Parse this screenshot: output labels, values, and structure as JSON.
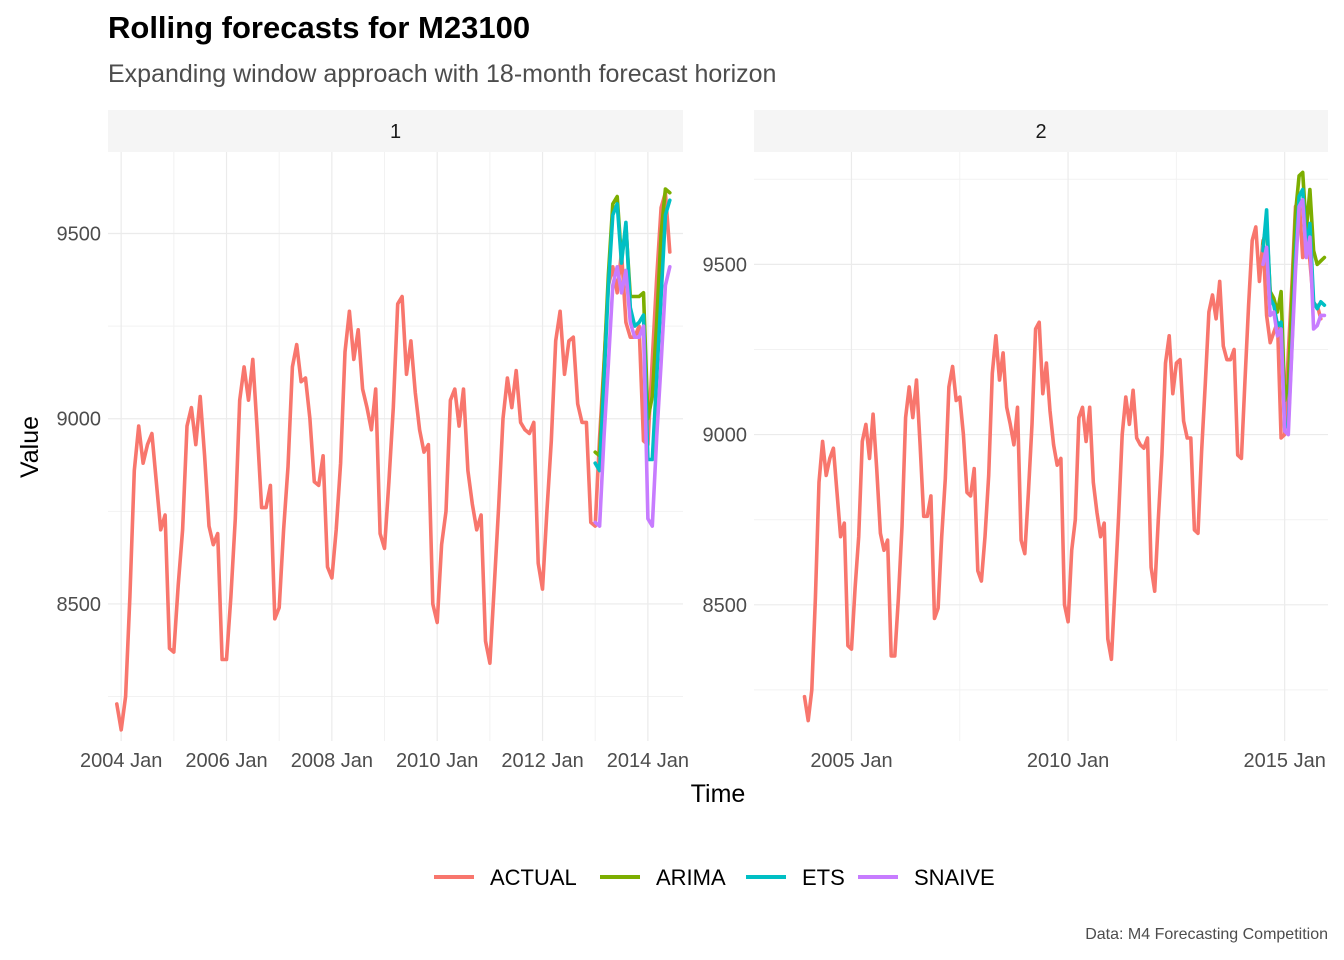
{
  "title": "Rolling forecasts for M23100",
  "subtitle": "Expanding window approach with 18-month forecast horizon",
  "caption": "Data: M4 Forecasting Competition",
  "colors": {
    "ACTUAL": "#F8766D",
    "ARIMA": "#7CAE00",
    "ETS": "#00BFC4",
    "SNAIVE": "#C77CFF"
  },
  "chart_data": {
    "type": "line",
    "xlabel": "Time",
    "ylabel": "Value",
    "legend_position": "bottom",
    "grid": true,
    "series_names": [
      "ACTUAL",
      "ARIMA",
      "ETS",
      "SNAIVE"
    ],
    "actual_series": {
      "name": "ACTUAL",
      "start": "2003 Dec",
      "values": [
        8230,
        8160,
        8250,
        8520,
        8860,
        8980,
        8880,
        8930,
        8960,
        8830,
        8700,
        8740,
        8380,
        8370,
        8550,
        8700,
        8980,
        9030,
        8930,
        9060,
        8900,
        8710,
        8660,
        8690,
        8350,
        8350,
        8520,
        8730,
        9050,
        9140,
        9050,
        9160,
        8970,
        8760,
        8760,
        8820,
        8460,
        8490,
        8700,
        8870,
        9140,
        9200,
        9100,
        9110,
        9000,
        8830,
        8820,
        8900,
        8600,
        8570,
        8700,
        8880,
        9180,
        9290,
        9160,
        9240,
        9080,
        9030,
        8970,
        9080,
        8690,
        8650,
        8830,
        9030,
        9310,
        9330,
        9120,
        9210,
        9070,
        8970,
        8910,
        8930,
        8500,
        8450,
        8660,
        8750,
        9050,
        9080,
        8980,
        9080,
        8860,
        8770,
        8700,
        8740,
        8400,
        8340,
        8550,
        8760,
        9000,
        9110,
        9030,
        9130,
        8990,
        8970,
        8960,
        8990,
        8610,
        8540,
        8750,
        8940,
        9210,
        9290,
        9120,
        9210,
        9220,
        9040,
        8990,
        8990,
        8720,
        8710,
        8950,
        9150,
        9360,
        9410,
        9340,
        9450,
        9260,
        9220,
        9220,
        9250,
        8940,
        8930,
        9160,
        9380,
        9570,
        9610,
        9450,
        9570,
        9350,
        9270,
        9300,
        9330,
        8990,
        9000,
        9240,
        9440,
        9670,
        9690,
        9520,
        9620,
        9510,
        9380,
        9380,
        9340
      ],
      "panel_ends": [
        "2014 Jun",
        "2016 Jan"
      ]
    },
    "panels": [
      {
        "label": "1",
        "x_ticks": [
          "2004 Jan",
          "2006 Jan",
          "2008 Jan",
          "2010 Jan",
          "2012 Jan",
          "2014 Jan"
        ],
        "y_ticks": [
          8500,
          9000,
          9500
        ],
        "ylim": [
          8130,
          9720
        ],
        "xlim": [
          "2003 Oct",
          "2014 Sep"
        ],
        "forecast_start": "2013 Jan",
        "forecasts": {
          "ARIMA": [
            8910,
            8900,
            9140,
            9390,
            9580,
            9600,
            9430,
            9520,
            9330,
            9330,
            9330,
            9340,
            9000,
            9060,
            9260,
            9500,
            9620,
            9610
          ],
          "ETS": [
            8880,
            8860,
            9100,
            9360,
            9550,
            9580,
            9420,
            9530,
            9300,
            9250,
            9260,
            9280,
            8890,
            8890,
            9110,
            9330,
            9550,
            9590
          ],
          "SNAIVE": [
            8720,
            8710,
            8950,
            9150,
            9360,
            9410,
            9340,
            9400,
            9260,
            9220,
            9220,
            9250,
            8730,
            8710,
            8950,
            9150,
            9360,
            9410
          ]
        }
      },
      {
        "label": "2",
        "x_ticks": [
          "2005 Jan",
          "2010 Jan",
          "2015 Jan"
        ],
        "y_ticks": [
          8500,
          9000,
          9500
        ],
        "ylim": [
          8100,
          9830
        ],
        "xlim": [
          "2002 Oct",
          "2016 Jan"
        ],
        "forecast_start": "2014 Jul",
        "forecasts": {
          "ARIMA": [
            9560,
            9620,
            9420,
            9400,
            9360,
            9420,
            9100,
            9150,
            9400,
            9650,
            9760,
            9770,
            9600,
            9720,
            9540,
            9500,
            9510,
            9520
          ],
          "ETS": [
            9540,
            9660,
            9400,
            9380,
            9320,
            9330,
            9020,
            9030,
            9260,
            9520,
            9700,
            9720,
            9550,
            9620,
            9390,
            9370,
            9390,
            9380
          ],
          "SNAIVE": [
            9500,
            9550,
            9350,
            9360,
            9290,
            9310,
            9010,
            9000,
            9250,
            9480,
            9670,
            9690,
            9520,
            9580,
            9310,
            9320,
            9350,
            9350
          ]
        }
      }
    ]
  }
}
